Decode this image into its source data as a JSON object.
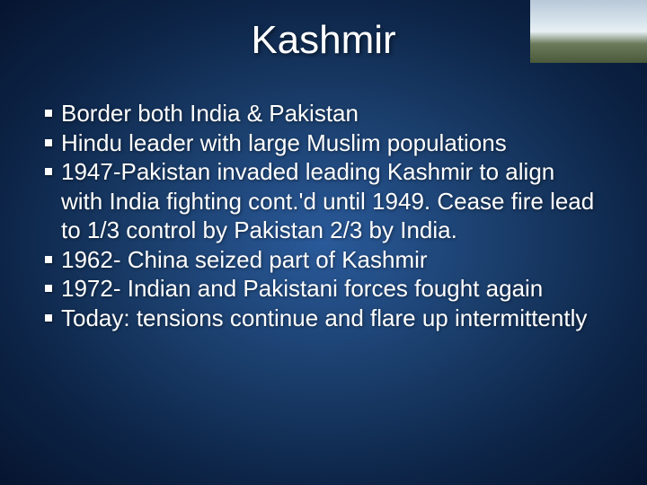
{
  "slide": {
    "title": "Kashmir",
    "title_fontsize": 44,
    "title_color": "#ffffff",
    "body_fontsize": 26,
    "body_color": "#ffffff",
    "background_gradient": {
      "center": "#2a5a9a",
      "mid": "#1a3d6a",
      "outer": "#0d2548",
      "edge": "#061530"
    },
    "bullets": [
      "Border both India & Pakistan",
      "Hindu leader with large Muslim populations",
      "1947-Pakistan invaded leading Kashmir to align with India fighting cont.'d until 1949.  Cease fire lead to 1/3 control by Pakistan 2/3 by India.",
      "1962- China seized part of Kashmir",
      "1972- Indian and Pakistani forces fought again",
      "Today: tensions continue and flare up intermittently"
    ],
    "corner_image": {
      "description": "landscape-photo",
      "sky_color": "#d8e4ec",
      "ground_color": "#4a5a3a"
    }
  }
}
